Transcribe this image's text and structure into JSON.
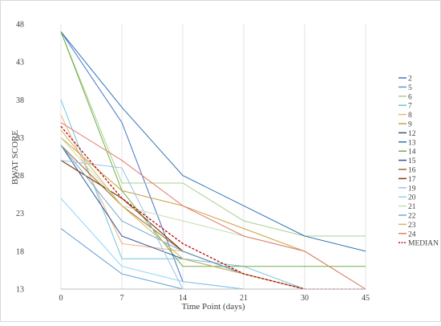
{
  "chart_data": {
    "type": "line",
    "title": "",
    "xlabel": "Time Point (days)",
    "ylabel": "BWAT SCORE",
    "x": [
      "0",
      "7",
      "14",
      "21",
      "30",
      "45"
    ],
    "yticks": [
      13,
      18,
      23,
      28,
      33,
      38,
      43,
      48
    ],
    "ylim": [
      13,
      48
    ],
    "grid": "vertical gridlines at each time point",
    "legend_position": "right",
    "series": [
      {
        "name": "2",
        "color": "#4472c4",
        "values": [
          47,
          35,
          14,
          13,
          13,
          13
        ]
      },
      {
        "name": "5",
        "color": "#5b9bd5",
        "values": [
          21,
          15,
          13,
          13,
          13,
          13
        ]
      },
      {
        "name": "6",
        "color": "#a9d18e",
        "values": [
          47,
          27,
          27,
          22,
          20,
          20
        ]
      },
      {
        "name": "7",
        "color": "#70c4e0",
        "values": [
          38,
          17,
          17,
          16,
          13,
          13
        ]
      },
      {
        "name": "8",
        "color": "#f4b183",
        "values": [
          36,
          19,
          18,
          15,
          13,
          13
        ]
      },
      {
        "name": "9",
        "color": "#c9a040",
        "values": [
          33,
          26,
          24,
          21,
          18,
          13
        ]
      },
      {
        "name": "12",
        "color": "#44546a",
        "values": [
          30,
          25,
          18,
          15,
          13,
          13
        ]
      },
      {
        "name": "13",
        "color": "#2e75b6",
        "values": [
          47,
          37,
          28,
          24,
          20,
          18
        ]
      },
      {
        "name": "14",
        "color": "#70ad47",
        "values": [
          47,
          26,
          16,
          16,
          16,
          16
        ]
      },
      {
        "name": "15",
        "color": "#2f5597",
        "values": [
          32,
          20,
          17,
          15,
          13,
          13
        ]
      },
      {
        "name": "16",
        "color": "#a5682a",
        "values": [
          32,
          24,
          18,
          15,
          13,
          13
        ]
      },
      {
        "name": "17",
        "color": "#843c0c",
        "values": [
          30,
          25,
          18,
          15,
          13,
          13
        ]
      },
      {
        "name": "19",
        "color": "#9dc3e6",
        "values": [
          30,
          29,
          13,
          13,
          13,
          13
        ]
      },
      {
        "name": "20",
        "color": "#8fd3f4",
        "values": [
          25,
          16,
          14,
          13,
          13,
          13
        ]
      },
      {
        "name": "21",
        "color": "#c5e0b4",
        "values": [
          33,
          24,
          22,
          20,
          18,
          13
        ]
      },
      {
        "name": "22",
        "color": "#6baed6",
        "values": [
          32,
          22,
          18,
          15,
          13,
          13
        ]
      },
      {
        "name": "23",
        "color": "#d6b85a",
        "values": [
          34,
          24,
          17,
          15,
          13,
          13
        ]
      },
      {
        "name": "24",
        "color": "#e07b6a",
        "values": [
          35,
          30,
          24,
          20,
          18,
          13
        ]
      },
      {
        "name": "MEDIAN",
        "color": "#c00000",
        "dashed": true,
        "values": [
          34.5,
          25,
          19,
          15,
          13,
          13
        ]
      }
    ]
  }
}
